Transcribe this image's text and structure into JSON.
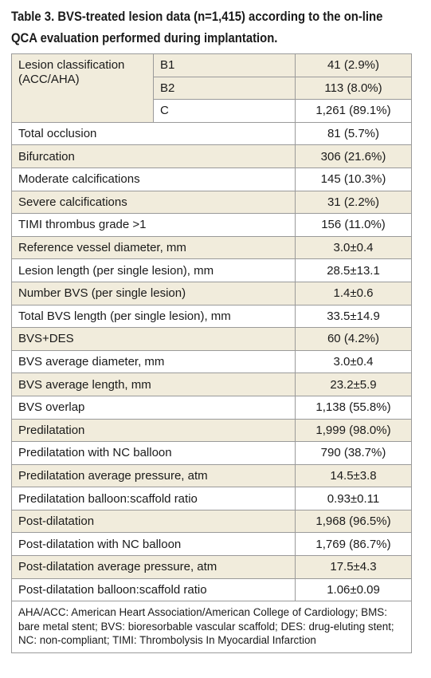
{
  "title": "Table 3. BVS-treated lesion data (n=1,415) according to the on-line QCA evaluation performed during implantation.",
  "lesion_classification": {
    "label": "Lesion classification (ACC/AHA)",
    "rows": [
      {
        "sub": "B1",
        "value": "41 (2.9%)"
      },
      {
        "sub": "B2",
        "value": "113 (8.0%)"
      },
      {
        "sub": "C",
        "value": "1,261 (89.1%)"
      }
    ]
  },
  "rows": [
    {
      "label": "Total occlusion",
      "value": "81 (5.7%)"
    },
    {
      "label": "Bifurcation",
      "value": "306 (21.6%)"
    },
    {
      "label": "Moderate calcifications",
      "value": "145 (10.3%)"
    },
    {
      "label": "Severe calcifications",
      "value": "31 (2.2%)"
    },
    {
      "label": "TIMI thrombus grade >1",
      "value": "156 (11.0%)"
    },
    {
      "label": "Reference vessel diameter, mm",
      "value": "3.0±0.4"
    },
    {
      "label": "Lesion length (per single lesion), mm",
      "value": "28.5±13.1"
    },
    {
      "label": "Number BVS (per single lesion)",
      "value": "1.4±0.6"
    },
    {
      "label": "Total BVS length (per single lesion), mm",
      "value": "33.5±14.9"
    },
    {
      "label": "BVS+DES",
      "value": "60 (4.2%)"
    },
    {
      "label": "BVS average diameter, mm",
      "value": "3.0±0.4"
    },
    {
      "label": "BVS average length, mm",
      "value": "23.2±5.9"
    },
    {
      "label": "BVS overlap",
      "value": "1,138 (55.8%)"
    },
    {
      "label": "Predilatation",
      "value": "1,999 (98.0%)"
    },
    {
      "label": "Predilatation with NC balloon",
      "value": "790 (38.7%)"
    },
    {
      "label": "Predilatation average pressure, atm",
      "value": "14.5±3.8"
    },
    {
      "label": "Predilatation balloon:scaffold ratio",
      "value": "0.93±0.11"
    },
    {
      "label": "Post-dilatation",
      "value": "1,968 (96.5%)"
    },
    {
      "label": "Post-dilatation with NC balloon",
      "value": "1,769 (86.7%)"
    },
    {
      "label": "Post-dilatation average pressure, atm",
      "value": "17.5±4.3"
    },
    {
      "label": "Post-dilatation balloon:scaffold ratio",
      "value": "1.06±0.09"
    }
  ],
  "footnote": "AHA/ACC: American Heart Association/American College of Cardiology; BMS: bare metal stent; BVS: bioresorbable vascular scaffold; DES: drug-eluting stent; NC: non-compliant; TIMI: Thrombolysis In Myocardial Infarction",
  "colors": {
    "row_shade": "#f1ecdc",
    "border": "#9a9a9a",
    "text": "#1a1a1a"
  }
}
